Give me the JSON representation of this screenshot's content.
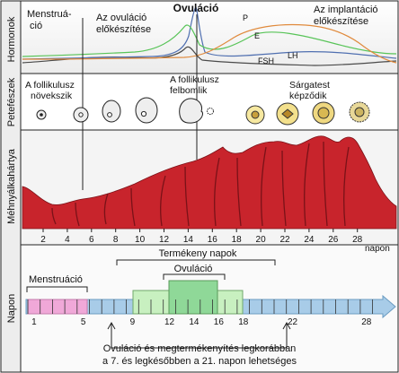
{
  "rows": {
    "hormones": "Hormonok",
    "ovaries": "Petefészek",
    "endometrium": "Méhnyálkahártya",
    "days": "Napon"
  },
  "hormone_panel": {
    "menstruation": [
      "Menstruá-",
      "ció"
    ],
    "preparation_ovulation": [
      "Az ovuláció",
      "előkészítése"
    ],
    "ovulation": "Ovuláció",
    "preparation_implantation": [
      "Az implantáció",
      "előkészítése"
    ],
    "curve_labels": {
      "P": "P",
      "E": "E",
      "LH": "LH",
      "FSH": "FSH"
    },
    "colors": {
      "P": "#e08a3c",
      "E": "#58c458",
      "LH": "#4f6fb0",
      "FSH": "#4a4a4a"
    }
  },
  "ovary_panel": {
    "follicle_grows": [
      "A follikulusz",
      "növekszik"
    ],
    "follicle_ruptures": [
      "A follikulusz",
      "felbomlik"
    ],
    "corpus_luteum_forms": [
      "Sárgatest",
      "képződik"
    ]
  },
  "endometrium_panel": {
    "color": "#c8242c",
    "day_ticks": [
      "2",
      "4",
      "6",
      "8",
      "10",
      "12",
      "14",
      "16",
      "18",
      "20",
      "22",
      "24",
      "26",
      "28"
    ],
    "unit": "napon"
  },
  "days_panel": {
    "fertile_days": "Termékeny napok",
    "menstruation": "Menstruáció",
    "ovulation": "Ovuláció",
    "bar_numbers": [
      "1",
      "5",
      "9",
      "12",
      "14",
      "16",
      "18",
      "22",
      "28"
    ],
    "note": [
      "Ovuláció és megtermékenyítés legkorábban",
      "a 7. és legkésőbben a 21. napon lehetséges"
    ],
    "colors": {
      "menstruation": "#f0a8d8",
      "cycle": "#a8cce8",
      "fertile": "#c8f0c0",
      "ovulation": "#8fd898"
    }
  }
}
